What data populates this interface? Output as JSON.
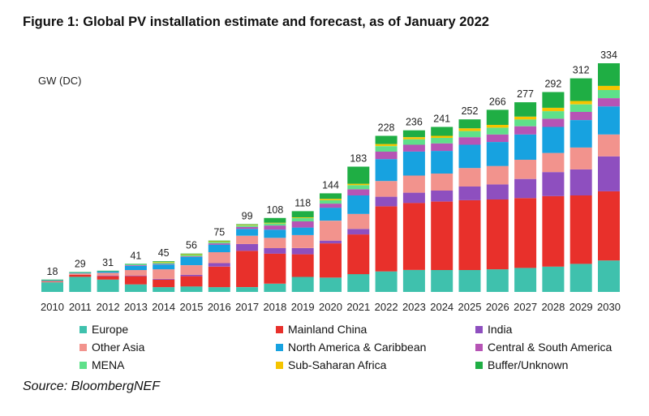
{
  "title": "Figure 1:  Global PV installation estimate and forecast, as of January 2022",
  "source": "Source: BloombergNEF",
  "chart_data": {
    "type": "bar",
    "stacked": true,
    "unit_label": "GW (DC)",
    "categories": [
      "2010",
      "2011",
      "2012",
      "2013",
      "2014",
      "2015",
      "2016",
      "2017",
      "2018",
      "2019",
      "2020",
      "2021",
      "2022",
      "2023",
      "2024",
      "2025",
      "2026",
      "2027",
      "2028",
      "2029",
      "2030"
    ],
    "totals": [
      18,
      29,
      31,
      41,
      45,
      56,
      75,
      99,
      108,
      118,
      144,
      183,
      228,
      236,
      241,
      252,
      266,
      277,
      292,
      312,
      334
    ],
    "ylim": [
      0,
      334
    ],
    "grid": false,
    "legend_position": "bottom",
    "series": [
      {
        "name": "Europe",
        "color": "#3fc1ad",
        "values": [
          14,
          22,
          18,
          11,
          7,
          8,
          7,
          7,
          12,
          22,
          21,
          26,
          30,
          32,
          32,
          32,
          33,
          35,
          37,
          41,
          46
        ]
      },
      {
        "name": "Mainland China",
        "color": "#e8302b",
        "values": [
          1,
          3,
          5,
          12,
          11,
          15,
          30,
          53,
          44,
          33,
          50,
          58,
          95,
          98,
          100,
          102,
          102,
          102,
          103,
          100,
          101
        ]
      },
      {
        "name": "India",
        "color": "#8e4fbf",
        "values": [
          0,
          0,
          1,
          1,
          1,
          2,
          5,
          10,
          8,
          9,
          4,
          8,
          14,
          15,
          16,
          20,
          22,
          28,
          35,
          38,
          51
        ]
      },
      {
        "name": "Other Asia",
        "color": "#f2938d",
        "values": [
          1,
          2,
          4,
          8,
          14,
          14,
          16,
          12,
          15,
          19,
          29,
          22,
          23,
          25,
          25,
          27,
          27,
          28,
          28,
          32,
          32
        ]
      },
      {
        "name": "North America & Caribbean",
        "color": "#17a2e0",
        "values": [
          1,
          1,
          2,
          6,
          7,
          12,
          11,
          10,
          12,
          11,
          19,
          27,
          32,
          35,
          33,
          34,
          35,
          37,
          38,
          40,
          41
        ]
      },
      {
        "name": "Central & South America",
        "color": "#b654b5",
        "values": [
          0,
          0,
          0,
          1,
          1,
          1,
          2,
          3,
          6,
          9,
          6,
          9,
          11,
          10,
          11,
          11,
          11,
          12,
          12,
          12,
          12
        ]
      },
      {
        "name": "MENA",
        "color": "#5ee08a",
        "values": [
          0,
          0,
          0,
          1,
          2,
          2,
          2,
          2,
          3,
          5,
          5,
          6,
          8,
          8,
          8,
          9,
          10,
          10,
          11,
          11,
          12
        ]
      },
      {
        "name": "Sub-Saharan Africa",
        "color": "#f5c400",
        "values": [
          0,
          0,
          0,
          0,
          1,
          1,
          1,
          1,
          1,
          1,
          2,
          2,
          3,
          3,
          3,
          4,
          4,
          4,
          5,
          5,
          6
        ]
      },
      {
        "name": "Buffer/Unknown",
        "color": "#1fae44",
        "values": [
          1,
          1,
          1,
          1,
          1,
          1,
          1,
          1,
          7,
          9,
          8,
          25,
          12,
          10,
          13,
          13,
          22,
          21,
          23,
          33,
          33
        ]
      }
    ]
  }
}
